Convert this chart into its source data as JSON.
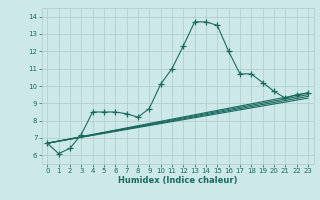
{
  "title": "",
  "xlabel": "Humidex (Indice chaleur)",
  "xlim": [
    -0.5,
    23.5
  ],
  "ylim": [
    5.5,
    14.5
  ],
  "xticks": [
    0,
    1,
    2,
    3,
    4,
    5,
    6,
    7,
    8,
    9,
    10,
    11,
    12,
    13,
    14,
    15,
    16,
    17,
    18,
    19,
    20,
    21,
    22,
    23
  ],
  "yticks": [
    6,
    7,
    8,
    9,
    10,
    11,
    12,
    13,
    14
  ],
  "bg_color": "#cce8e8",
  "line_color": "#1a6b5e",
  "grid_color": "#b0c8c8",
  "lines": [
    {
      "x": [
        0,
        1,
        2,
        3,
        4,
        5,
        6,
        7,
        8,
        9,
        10,
        11,
        12,
        13,
        14,
        15,
        16,
        17,
        18,
        19,
        20,
        21,
        22,
        23
      ],
      "y": [
        6.7,
        6.1,
        6.4,
        7.2,
        8.5,
        8.5,
        8.5,
        8.4,
        8.2,
        8.7,
        10.1,
        11.0,
        12.3,
        13.7,
        13.7,
        13.5,
        12.0,
        10.7,
        10.7,
        10.2,
        9.7,
        9.3,
        9.5,
        9.6
      ],
      "marker": true
    },
    {
      "x": [
        0,
        23
      ],
      "y": [
        6.7,
        9.6
      ],
      "marker": false
    },
    {
      "x": [
        0,
        23
      ],
      "y": [
        6.7,
        9.5
      ],
      "marker": false
    },
    {
      "x": [
        0,
        23
      ],
      "y": [
        6.7,
        9.4
      ],
      "marker": false
    },
    {
      "x": [
        0,
        23
      ],
      "y": [
        6.7,
        9.3
      ],
      "marker": false
    }
  ]
}
